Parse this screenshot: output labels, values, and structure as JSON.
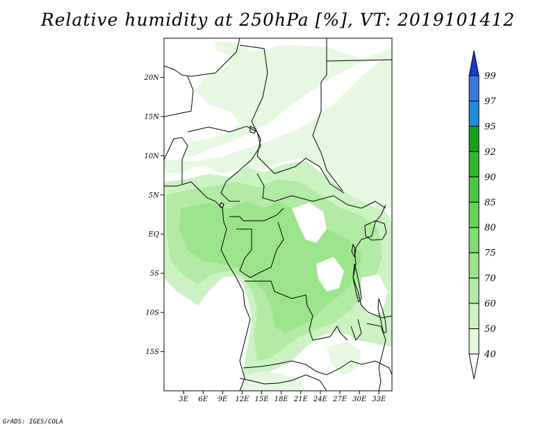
{
  "title": "Relative humidity at 250hPa [%], VT: 2019101412",
  "credit": "GrADS: IGES/COLA",
  "map": {
    "lon_range": [
      0,
      35
    ],
    "lat_range": [
      -20,
      25
    ],
    "lat_ticks": [
      {
        "value": 20,
        "label": "20N"
      },
      {
        "value": 15,
        "label": "15N"
      },
      {
        "value": 10,
        "label": "10N"
      },
      {
        "value": 5,
        "label": "5N"
      },
      {
        "value": 0,
        "label": "EQ"
      },
      {
        "value": -5,
        "label": "5S"
      },
      {
        "value": -10,
        "label": "10S"
      },
      {
        "value": -15,
        "label": "15S"
      }
    ],
    "lon_ticks": [
      {
        "value": 3,
        "label": "3E"
      },
      {
        "value": 6,
        "label": "6E"
      },
      {
        "value": 9,
        "label": "9E"
      },
      {
        "value": 12,
        "label": "12E"
      },
      {
        "value": 15,
        "label": "15E"
      },
      {
        "value": 18,
        "label": "18E"
      },
      {
        "value": 21,
        "label": "21E"
      },
      {
        "value": 24,
        "label": "24E"
      },
      {
        "value": 27,
        "label": "27E"
      },
      {
        "value": 30,
        "label": "30E"
      },
      {
        "value": 33,
        "label": "33E"
      }
    ]
  },
  "colorbar": {
    "levels": [
      "40",
      "50",
      "60",
      "70",
      "75",
      "80",
      "85",
      "90",
      "92",
      "95",
      "97",
      "99"
    ],
    "colors": [
      "#e6f8e0",
      "#cdf2c4",
      "#b3eaa6",
      "#9ce48b",
      "#82dc72",
      "#69d35a",
      "#4cc846",
      "#32b630",
      "#1e9e1e",
      "#1e8cdc",
      "#3c78dc",
      "#1e3cc8"
    ],
    "under_color": "#ffffff"
  }
}
